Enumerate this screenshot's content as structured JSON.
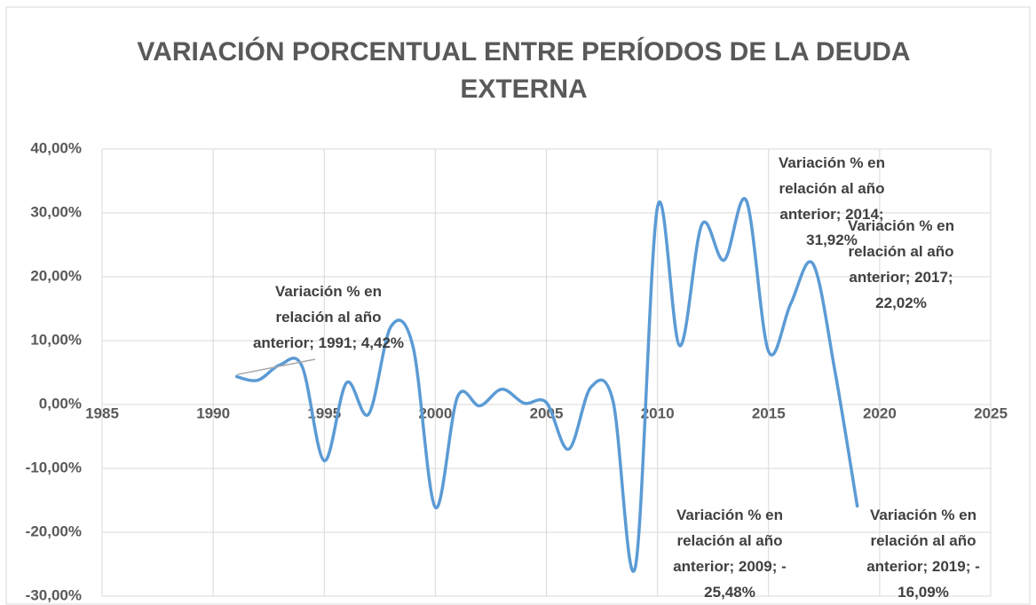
{
  "chart_data": {
    "type": "line",
    "title": "VARIACIÓN PORCENTUAL ENTRE PERÍODOS DE LA DEUDA EXTERNA",
    "x": [
      1991,
      1992,
      1993,
      1994,
      1995,
      1996,
      1997,
      1998,
      1999,
      2000,
      2001,
      2002,
      2003,
      2004,
      2005,
      2006,
      2007,
      2008,
      2009,
      2010,
      2011,
      2012,
      2013,
      2014,
      2015,
      2016,
      2017,
      2018,
      2019
    ],
    "series": [
      {
        "color": "#5b9bd5",
        "smooth": true,
        "values": [
          4.42,
          3.8,
          6.2,
          6.0,
          -8.8,
          3.4,
          -1.5,
          12.2,
          9.0,
          -16.1,
          1.2,
          -0.2,
          2.4,
          0.2,
          0.3,
          -7.0,
          2.7,
          0.5,
          -25.48,
          30.9,
          9.2,
          28.2,
          22.6,
          31.92,
          8.3,
          15.8,
          22.02,
          5.0,
          -16.09
        ],
        "value_labels": [
          "Variación % en relación al año anterior; 1991; 4,42%",
          null,
          null,
          null,
          null,
          null,
          null,
          null,
          null,
          null,
          null,
          null,
          null,
          null,
          null,
          null,
          null,
          null,
          "Variación % en relación al año anterior; 2009; -25,48%",
          null,
          null,
          null,
          null,
          "Variación % en relación al año anterior; 2014; 31,92%",
          null,
          null,
          "Variación % en relación al año anterior; 2017; 22,02%",
          null,
          "Variación % en relación al año anterior; 2019; -16,09%"
        ]
      }
    ],
    "xlim": [
      1985,
      2025
    ],
    "xticks": [
      1985,
      1990,
      1995,
      2000,
      2005,
      2010,
      2015,
      2020,
      2025
    ],
    "ylim": [
      -30,
      40
    ],
    "yticks": [
      {
        "value": 40,
        "label": "40,00%"
      },
      {
        "value": 30,
        "label": "30,00%"
      },
      {
        "value": 20,
        "label": "20,00%"
      },
      {
        "value": 10,
        "label": "10,00%"
      },
      {
        "value": 0,
        "label": "0,00%"
      },
      {
        "value": -10,
        "label": "-10,00%"
      },
      {
        "value": -20,
        "label": "-20,00%"
      },
      {
        "value": -30,
        "label": "-30,00%"
      }
    ],
    "grid": true
  }
}
